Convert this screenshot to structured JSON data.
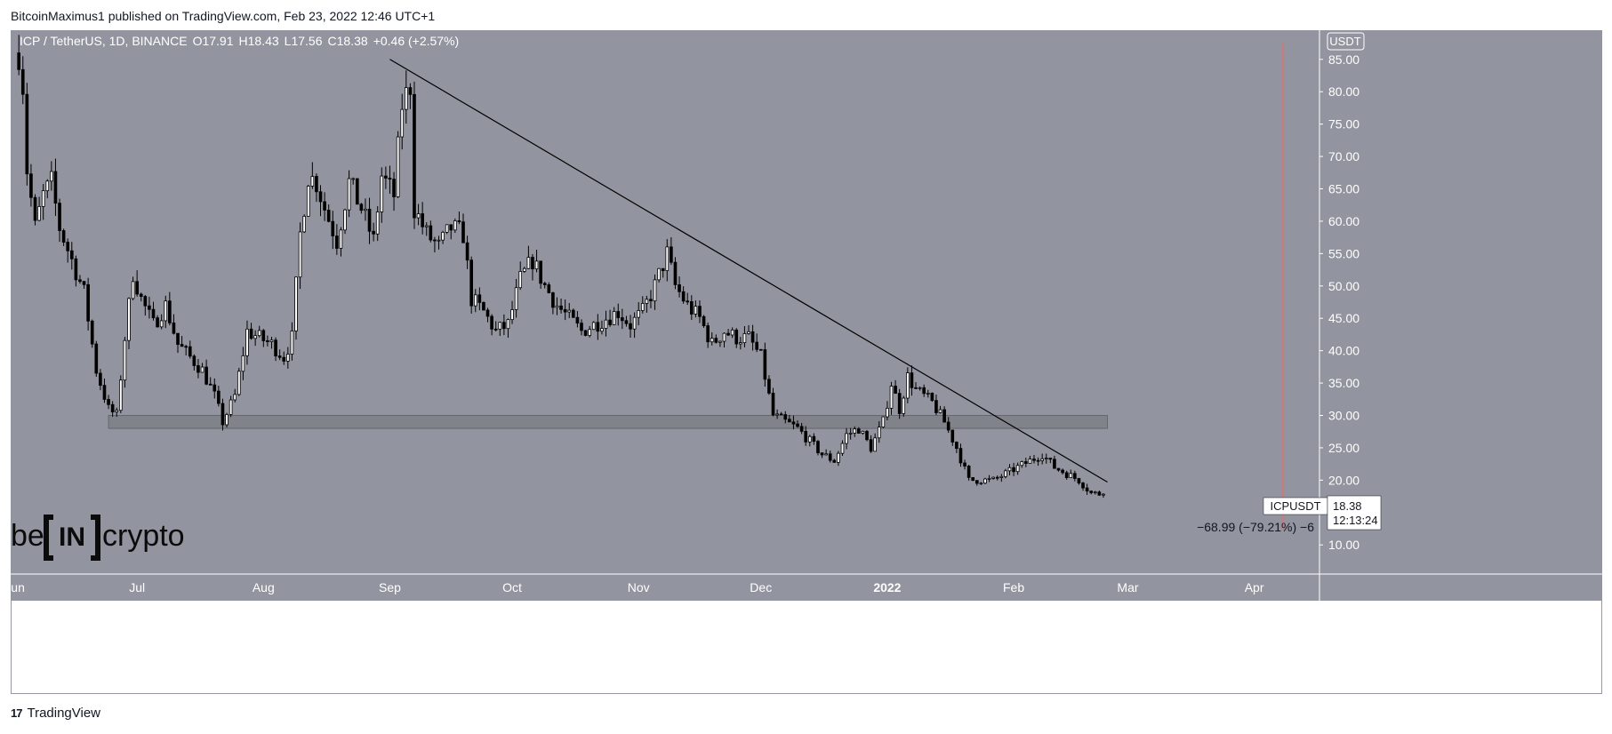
{
  "header": {
    "published": "BitcoinMaximus1 published on TradingView.com, Feb 23, 2022 12:46 UTC+1"
  },
  "footer": {
    "logo": "17",
    "label": "TradingView"
  },
  "colors": {
    "background": "#92959f",
    "candle_up": "#ffffff",
    "candle_down": "#000000",
    "wick": "#000000",
    "trendline": "#000000",
    "support_zone": "#7f8187",
    "vertical_marker": "#c77b82",
    "axis_text": "#ffffff"
  },
  "chart_data": {
    "type": "candlestick",
    "symbol_legend": {
      "symbol": "ICP / TetherUS, 1D, BINANCE",
      "o_label": "O",
      "o": "17.91",
      "h_label": "H",
      "h": "18.43",
      "l_label": "L",
      "l": "17.56",
      "c_label": "C",
      "c": "18.38",
      "change": "+0.46 (+2.57%)"
    },
    "y_axis": {
      "currency": "USDT",
      "ticks": [
        "85.00",
        "80.00",
        "75.00",
        "70.00",
        "65.00",
        "60.00",
        "55.00",
        "50.00",
        "45.00",
        "40.00",
        "35.00",
        "30.00",
        "25.00",
        "20.00",
        "15.00",
        "10.00"
      ],
      "ylim": [
        5.5,
        89.5
      ]
    },
    "x_axis": {
      "ticks": [
        {
          "label": "Jun",
          "date": "2021-06-01"
        },
        {
          "label": "Jul",
          "date": "2021-07-01"
        },
        {
          "label": "Aug",
          "date": "2021-08-01"
        },
        {
          "label": "Sep",
          "date": "2021-09-01"
        },
        {
          "label": "Oct",
          "date": "2021-10-01"
        },
        {
          "label": "Nov",
          "date": "2021-11-01"
        },
        {
          "label": "Dec",
          "date": "2021-12-01"
        },
        {
          "label": "2022",
          "date": "2022-01-01"
        },
        {
          "label": "Feb",
          "date": "2022-02-01"
        },
        {
          "label": "Mar",
          "date": "2022-03-01"
        },
        {
          "label": "Apr",
          "date": "2022-04-01"
        }
      ],
      "xlim": [
        "2021-05-31",
        "2022-04-17"
      ]
    },
    "close_series": [
      {
        "date": "2021-06-02",
        "close": 86
      },
      {
        "date": "2021-06-03",
        "close": 81
      },
      {
        "date": "2021-06-04",
        "close": 68
      },
      {
        "date": "2021-06-06",
        "close": 59
      },
      {
        "date": "2021-06-08",
        "close": 64
      },
      {
        "date": "2021-06-10",
        "close": 66
      },
      {
        "date": "2021-06-12",
        "close": 59
      },
      {
        "date": "2021-06-15",
        "close": 54
      },
      {
        "date": "2021-06-18",
        "close": 49
      },
      {
        "date": "2021-06-21",
        "close": 37
      },
      {
        "date": "2021-06-24",
        "close": 31
      },
      {
        "date": "2021-06-26",
        "close": 30
      },
      {
        "date": "2021-06-28",
        "close": 42
      },
      {
        "date": "2021-06-30",
        "close": 52
      },
      {
        "date": "2021-07-02",
        "close": 48
      },
      {
        "date": "2021-07-05",
        "close": 44
      },
      {
        "date": "2021-07-08",
        "close": 47
      },
      {
        "date": "2021-07-11",
        "close": 41
      },
      {
        "date": "2021-07-14",
        "close": 39
      },
      {
        "date": "2021-07-17",
        "close": 37
      },
      {
        "date": "2021-07-20",
        "close": 33
      },
      {
        "date": "2021-07-22",
        "close": 29
      },
      {
        "date": "2021-07-25",
        "close": 33
      },
      {
        "date": "2021-07-28",
        "close": 43
      },
      {
        "date": "2021-07-31",
        "close": 42
      },
      {
        "date": "2021-08-03",
        "close": 41
      },
      {
        "date": "2021-08-06",
        "close": 39
      },
      {
        "date": "2021-08-08",
        "close": 42
      },
      {
        "date": "2021-08-10",
        "close": 58
      },
      {
        "date": "2021-08-12",
        "close": 67
      },
      {
        "date": "2021-08-14",
        "close": 66
      },
      {
        "date": "2021-08-16",
        "close": 62
      },
      {
        "date": "2021-08-19",
        "close": 57
      },
      {
        "date": "2021-08-22",
        "close": 66
      },
      {
        "date": "2021-08-25",
        "close": 62
      },
      {
        "date": "2021-08-28",
        "close": 57
      },
      {
        "date": "2021-08-30",
        "close": 67
      },
      {
        "date": "2021-09-02",
        "close": 64
      },
      {
        "date": "2021-09-04",
        "close": 78
      },
      {
        "date": "2021-09-06",
        "close": 81
      },
      {
        "date": "2021-09-07",
        "close": 62
      },
      {
        "date": "2021-09-10",
        "close": 58
      },
      {
        "date": "2021-09-13",
        "close": 56
      },
      {
        "date": "2021-09-16",
        "close": 59
      },
      {
        "date": "2021-09-19",
        "close": 58
      },
      {
        "date": "2021-09-21",
        "close": 48
      },
      {
        "date": "2021-09-24",
        "close": 46
      },
      {
        "date": "2021-09-27",
        "close": 43
      },
      {
        "date": "2021-09-30",
        "close": 44
      },
      {
        "date": "2021-10-03",
        "close": 51
      },
      {
        "date": "2021-10-06",
        "close": 54
      },
      {
        "date": "2021-10-09",
        "close": 50
      },
      {
        "date": "2021-10-12",
        "close": 47
      },
      {
        "date": "2021-10-15",
        "close": 45
      },
      {
        "date": "2021-10-18",
        "close": 43
      },
      {
        "date": "2021-10-21",
        "close": 44
      },
      {
        "date": "2021-10-24",
        "close": 45
      },
      {
        "date": "2021-10-27",
        "close": 46
      },
      {
        "date": "2021-10-30",
        "close": 44
      },
      {
        "date": "2021-11-02",
        "close": 46
      },
      {
        "date": "2021-11-05",
        "close": 50
      },
      {
        "date": "2021-11-08",
        "close": 55
      },
      {
        "date": "2021-11-10",
        "close": 50
      },
      {
        "date": "2021-11-13",
        "close": 47
      },
      {
        "date": "2021-11-16",
        "close": 45
      },
      {
        "date": "2021-11-19",
        "close": 41
      },
      {
        "date": "2021-11-22",
        "close": 43
      },
      {
        "date": "2021-11-25",
        "close": 42
      },
      {
        "date": "2021-11-28",
        "close": 42
      },
      {
        "date": "2021-12-01",
        "close": 39
      },
      {
        "date": "2021-12-04",
        "close": 30
      },
      {
        "date": "2021-12-07",
        "close": 29
      },
      {
        "date": "2021-12-10",
        "close": 28
      },
      {
        "date": "2021-12-13",
        "close": 26
      },
      {
        "date": "2021-12-16",
        "close": 24
      },
      {
        "date": "2021-12-19",
        "close": 23
      },
      {
        "date": "2021-12-22",
        "close": 27
      },
      {
        "date": "2021-12-25",
        "close": 28
      },
      {
        "date": "2021-12-28",
        "close": 25
      },
      {
        "date": "2021-12-31",
        "close": 29
      },
      {
        "date": "2022-01-02",
        "close": 35
      },
      {
        "date": "2022-01-04",
        "close": 31
      },
      {
        "date": "2022-01-06",
        "close": 36
      },
      {
        "date": "2022-01-08",
        "close": 34
      },
      {
        "date": "2022-01-10",
        "close": 33
      },
      {
        "date": "2022-01-12",
        "close": 32
      },
      {
        "date": "2022-01-15",
        "close": 29
      },
      {
        "date": "2022-01-18",
        "close": 25
      },
      {
        "date": "2022-01-21",
        "close": 20
      },
      {
        "date": "2022-01-24",
        "close": 20
      },
      {
        "date": "2022-01-27",
        "close": 20
      },
      {
        "date": "2022-01-30",
        "close": 21
      },
      {
        "date": "2022-02-02",
        "close": 22
      },
      {
        "date": "2022-02-05",
        "close": 23
      },
      {
        "date": "2022-02-08",
        "close": 24
      },
      {
        "date": "2022-02-11",
        "close": 22
      },
      {
        "date": "2022-02-14",
        "close": 21
      },
      {
        "date": "2022-02-17",
        "close": 20
      },
      {
        "date": "2022-02-20",
        "close": 18
      },
      {
        "date": "2022-02-22",
        "close": 17.9
      },
      {
        "date": "2022-02-23",
        "close": 18.38
      }
    ],
    "annotations": {
      "trendline": {
        "from": {
          "date": "2021-09-01",
          "value": 85
        },
        "to": {
          "date": "2022-02-24",
          "value": 19.7
        }
      },
      "support_zone": {
        "from": "2021-06-24",
        "to": "2022-02-24",
        "low": 28,
        "high": 30
      },
      "vertical_marker": {
        "date": "2022-04-08"
      },
      "last_price_tag": {
        "label": "ICPUSDT",
        "price": "18.38",
        "countdown": "12:13:24"
      },
      "measure_label": "−68.99 (−79.21%) −6",
      "watermark": "be[IN]crypto"
    }
  }
}
